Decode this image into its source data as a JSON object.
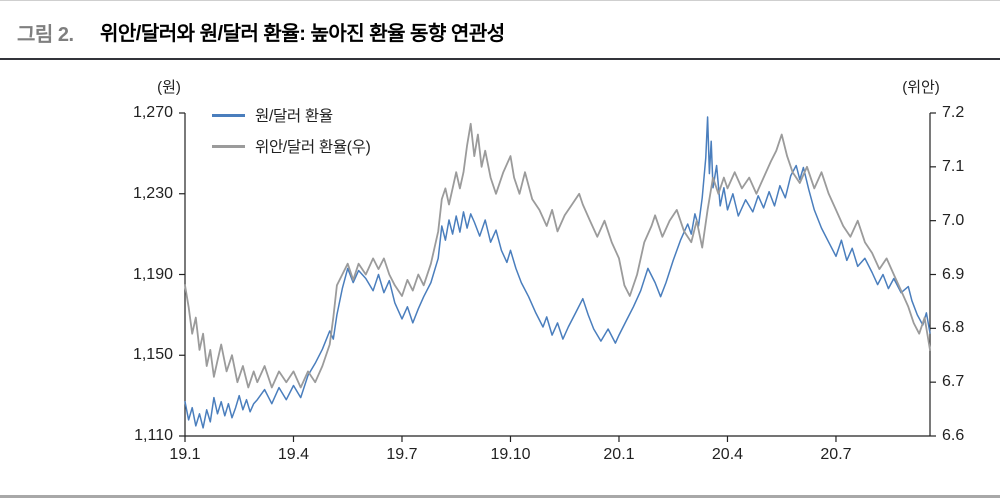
{
  "header": {
    "figure_label": "그림 2.",
    "title": "위안/달러와 원/달러 환율: 높아진 환율 동향 연관성"
  },
  "chart_data": {
    "type": "line",
    "title": "위안/달러와 원/달러 환율: 높아진 환율 동향 연관성",
    "legend_position": "top-left-inside",
    "grid": false,
    "axis_color": "#222222",
    "left_axis": {
      "unit": "(원)",
      "min": 1110,
      "max": 1270,
      "ticks": [
        {
          "value": 1110,
          "label": "1,110"
        },
        {
          "value": 1150,
          "label": "1,150"
        },
        {
          "value": 1190,
          "label": "1,190"
        },
        {
          "value": 1230,
          "label": "1,230"
        },
        {
          "value": 1270,
          "label": "1,270"
        }
      ]
    },
    "right_axis": {
      "unit": "(위안)",
      "min": 6.6,
      "max": 7.2,
      "ticks": [
        {
          "value": 6.6,
          "label": "6.6"
        },
        {
          "value": 6.7,
          "label": "6.7"
        },
        {
          "value": 6.8,
          "label": "6.8"
        },
        {
          "value": 6.9,
          "label": "6.9"
        },
        {
          "value": 7.0,
          "label": "7.0"
        },
        {
          "value": 7.1,
          "label": "7.1"
        },
        {
          "value": 7.2,
          "label": "7.2"
        }
      ]
    },
    "x_axis": {
      "unit": "year.month",
      "min": 0,
      "max": 20.6,
      "ticks": [
        {
          "t": 0,
          "label": "19.1"
        },
        {
          "t": 3,
          "label": "19.4"
        },
        {
          "t": 6,
          "label": "19.7"
        },
        {
          "t": 9,
          "label": "19.10"
        },
        {
          "t": 12,
          "label": "20.1"
        },
        {
          "t": 15,
          "label": "20.4"
        },
        {
          "t": 18,
          "label": "20.7"
        }
      ]
    },
    "series": [
      {
        "name": "원/달러 환율",
        "axis": "left",
        "color": "#4a7ebd",
        "width": 1.5,
        "points": [
          [
            0,
            1127
          ],
          [
            0.1,
            1118
          ],
          [
            0.2,
            1124
          ],
          [
            0.3,
            1115
          ],
          [
            0.4,
            1121
          ],
          [
            0.5,
            1114
          ],
          [
            0.6,
            1123
          ],
          [
            0.7,
            1117
          ],
          [
            0.8,
            1129
          ],
          [
            0.9,
            1121
          ],
          [
            1,
            1127
          ],
          [
            1.1,
            1120
          ],
          [
            1.2,
            1126
          ],
          [
            1.3,
            1119
          ],
          [
            1.4,
            1124
          ],
          [
            1.5,
            1130
          ],
          [
            1.6,
            1123
          ],
          [
            1.7,
            1128
          ],
          [
            1.8,
            1122
          ],
          [
            1.9,
            1126
          ],
          [
            2,
            1128
          ],
          [
            2.2,
            1133
          ],
          [
            2.4,
            1126
          ],
          [
            2.6,
            1134
          ],
          [
            2.8,
            1128
          ],
          [
            3,
            1135
          ],
          [
            3.2,
            1129
          ],
          [
            3.4,
            1140
          ],
          [
            3.6,
            1146
          ],
          [
            3.8,
            1153
          ],
          [
            4,
            1162
          ],
          [
            4.1,
            1158
          ],
          [
            4.2,
            1170
          ],
          [
            4.35,
            1183
          ],
          [
            4.5,
            1193
          ],
          [
            4.65,
            1186
          ],
          [
            4.8,
            1192
          ],
          [
            5,
            1188
          ],
          [
            5.2,
            1182
          ],
          [
            5.35,
            1190
          ],
          [
            5.5,
            1181
          ],
          [
            5.65,
            1187
          ],
          [
            5.8,
            1176
          ],
          [
            6,
            1168
          ],
          [
            6.15,
            1174
          ],
          [
            6.3,
            1166
          ],
          [
            6.45,
            1173
          ],
          [
            6.6,
            1179
          ],
          [
            6.8,
            1186
          ],
          [
            7,
            1198
          ],
          [
            7.1,
            1214
          ],
          [
            7.2,
            1207
          ],
          [
            7.3,
            1217
          ],
          [
            7.4,
            1210
          ],
          [
            7.5,
            1219
          ],
          [
            7.6,
            1211
          ],
          [
            7.7,
            1221
          ],
          [
            7.8,
            1213
          ],
          [
            7.9,
            1220
          ],
          [
            8,
            1216
          ],
          [
            8.15,
            1209
          ],
          [
            8.3,
            1217
          ],
          [
            8.45,
            1206
          ],
          [
            8.6,
            1212
          ],
          [
            8.75,
            1202
          ],
          [
            8.9,
            1196
          ],
          [
            9,
            1202
          ],
          [
            9.15,
            1193
          ],
          [
            9.3,
            1186
          ],
          [
            9.5,
            1179
          ],
          [
            9.7,
            1171
          ],
          [
            9.9,
            1164
          ],
          [
            10,
            1169
          ],
          [
            10.15,
            1160
          ],
          [
            10.3,
            1166
          ],
          [
            10.45,
            1158
          ],
          [
            10.6,
            1164
          ],
          [
            10.8,
            1171
          ],
          [
            11,
            1178
          ],
          [
            11.15,
            1170
          ],
          [
            11.3,
            1163
          ],
          [
            11.5,
            1157
          ],
          [
            11.7,
            1163
          ],
          [
            11.9,
            1156
          ],
          [
            12,
            1160
          ],
          [
            12.2,
            1167
          ],
          [
            12.4,
            1174
          ],
          [
            12.6,
            1182
          ],
          [
            12.8,
            1193
          ],
          [
            13,
            1186
          ],
          [
            13.15,
            1179
          ],
          [
            13.3,
            1186
          ],
          [
            13.5,
            1197
          ],
          [
            13.7,
            1207
          ],
          [
            13.9,
            1215
          ],
          [
            14,
            1210
          ],
          [
            14.1,
            1220
          ],
          [
            14.2,
            1214
          ],
          [
            14.3,
            1228
          ],
          [
            14.4,
            1248
          ],
          [
            14.45,
            1268
          ],
          [
            14.5,
            1240
          ],
          [
            14.55,
            1256
          ],
          [
            14.6,
            1233
          ],
          [
            14.7,
            1244
          ],
          [
            14.8,
            1224
          ],
          [
            14.9,
            1233
          ],
          [
            15,
            1222
          ],
          [
            15.15,
            1230
          ],
          [
            15.3,
            1219
          ],
          [
            15.5,
            1227
          ],
          [
            15.7,
            1221
          ],
          [
            15.85,
            1229
          ],
          [
            16,
            1223
          ],
          [
            16.15,
            1231
          ],
          [
            16.3,
            1224
          ],
          [
            16.45,
            1234
          ],
          [
            16.6,
            1228
          ],
          [
            16.75,
            1239
          ],
          [
            16.9,
            1244
          ],
          [
            17,
            1237
          ],
          [
            17.1,
            1243
          ],
          [
            17.25,
            1232
          ],
          [
            17.4,
            1222
          ],
          [
            17.6,
            1213
          ],
          [
            17.8,
            1206
          ],
          [
            18,
            1199
          ],
          [
            18.15,
            1207
          ],
          [
            18.3,
            1197
          ],
          [
            18.45,
            1203
          ],
          [
            18.6,
            1194
          ],
          [
            18.8,
            1198
          ],
          [
            19,
            1191
          ],
          [
            19.15,
            1185
          ],
          [
            19.3,
            1190
          ],
          [
            19.45,
            1183
          ],
          [
            19.6,
            1188
          ],
          [
            19.8,
            1181
          ],
          [
            20,
            1184
          ],
          [
            20.1,
            1177
          ],
          [
            20.25,
            1170
          ],
          [
            20.4,
            1165
          ],
          [
            20.5,
            1171
          ],
          [
            20.6,
            1161
          ]
        ]
      },
      {
        "name": "위안/달러 환율(우)",
        "axis": "right",
        "color": "#9b9b9b",
        "width": 1.8,
        "points": [
          [
            0,
            6.88
          ],
          [
            0.1,
            6.84
          ],
          [
            0.2,
            6.79
          ],
          [
            0.3,
            6.82
          ],
          [
            0.4,
            6.76
          ],
          [
            0.5,
            6.79
          ],
          [
            0.6,
            6.73
          ],
          [
            0.7,
            6.76
          ],
          [
            0.8,
            6.71
          ],
          [
            0.9,
            6.74
          ],
          [
            1,
            6.77
          ],
          [
            1.15,
            6.72
          ],
          [
            1.3,
            6.75
          ],
          [
            1.45,
            6.7
          ],
          [
            1.6,
            6.73
          ],
          [
            1.75,
            6.69
          ],
          [
            1.9,
            6.72
          ],
          [
            2,
            6.7
          ],
          [
            2.2,
            6.73
          ],
          [
            2.4,
            6.69
          ],
          [
            2.6,
            6.72
          ],
          [
            2.8,
            6.7
          ],
          [
            3,
            6.72
          ],
          [
            3.2,
            6.69
          ],
          [
            3.4,
            6.72
          ],
          [
            3.6,
            6.7
          ],
          [
            3.8,
            6.73
          ],
          [
            4,
            6.77
          ],
          [
            4.1,
            6.82
          ],
          [
            4.2,
            6.88
          ],
          [
            4.35,
            6.9
          ],
          [
            4.5,
            6.92
          ],
          [
            4.65,
            6.89
          ],
          [
            4.8,
            6.92
          ],
          [
            5,
            6.9
          ],
          [
            5.2,
            6.93
          ],
          [
            5.35,
            6.91
          ],
          [
            5.5,
            6.93
          ],
          [
            5.65,
            6.9
          ],
          [
            5.8,
            6.88
          ],
          [
            6,
            6.86
          ],
          [
            6.15,
            6.89
          ],
          [
            6.3,
            6.87
          ],
          [
            6.45,
            6.9
          ],
          [
            6.6,
            6.88
          ],
          [
            6.8,
            6.92
          ],
          [
            7,
            6.98
          ],
          [
            7.1,
            7.04
          ],
          [
            7.2,
            7.06
          ],
          [
            7.3,
            7.03
          ],
          [
            7.4,
            7.06
          ],
          [
            7.5,
            7.09
          ],
          [
            7.6,
            7.06
          ],
          [
            7.7,
            7.09
          ],
          [
            7.8,
            7.14
          ],
          [
            7.9,
            7.18
          ],
          [
            8,
            7.12
          ],
          [
            8.1,
            7.16
          ],
          [
            8.2,
            7.1
          ],
          [
            8.3,
            7.13
          ],
          [
            8.45,
            7.08
          ],
          [
            8.6,
            7.05
          ],
          [
            8.8,
            7.09
          ],
          [
            9,
            7.12
          ],
          [
            9.1,
            7.08
          ],
          [
            9.25,
            7.05
          ],
          [
            9.4,
            7.09
          ],
          [
            9.6,
            7.04
          ],
          [
            9.8,
            7.02
          ],
          [
            10,
            6.99
          ],
          [
            10.15,
            7.02
          ],
          [
            10.3,
            6.98
          ],
          [
            10.5,
            7.01
          ],
          [
            10.7,
            7.03
          ],
          [
            10.9,
            7.05
          ],
          [
            11,
            7.03
          ],
          [
            11.2,
            7.0
          ],
          [
            11.4,
            6.97
          ],
          [
            11.6,
            7.0
          ],
          [
            11.8,
            6.96
          ],
          [
            12,
            6.93
          ],
          [
            12.15,
            6.88
          ],
          [
            12.3,
            6.86
          ],
          [
            12.5,
            6.9
          ],
          [
            12.7,
            6.96
          ],
          [
            12.9,
            6.99
          ],
          [
            13,
            7.01
          ],
          [
            13.2,
            6.97
          ],
          [
            13.4,
            7.0
          ],
          [
            13.6,
            7.02
          ],
          [
            13.8,
            6.98
          ],
          [
            14,
            6.96
          ],
          [
            14.15,
            7.0
          ],
          [
            14.3,
            6.95
          ],
          [
            14.45,
            7.02
          ],
          [
            14.6,
            7.08
          ],
          [
            14.75,
            7.05
          ],
          [
            14.9,
            7.08
          ],
          [
            15,
            7.06
          ],
          [
            15.2,
            7.09
          ],
          [
            15.4,
            7.06
          ],
          [
            15.6,
            7.08
          ],
          [
            15.8,
            7.05
          ],
          [
            16,
            7.08
          ],
          [
            16.2,
            7.11
          ],
          [
            16.35,
            7.13
          ],
          [
            16.5,
            7.16
          ],
          [
            16.65,
            7.12
          ],
          [
            16.8,
            7.09
          ],
          [
            17,
            7.07
          ],
          [
            17.2,
            7.1
          ],
          [
            17.4,
            7.06
          ],
          [
            17.6,
            7.09
          ],
          [
            17.8,
            7.05
          ],
          [
            18,
            7.02
          ],
          [
            18.2,
            6.99
          ],
          [
            18.4,
            6.97
          ],
          [
            18.6,
            7.0
          ],
          [
            18.8,
            6.96
          ],
          [
            19,
            6.94
          ],
          [
            19.2,
            6.91
          ],
          [
            19.4,
            6.93
          ],
          [
            19.6,
            6.9
          ],
          [
            19.8,
            6.87
          ],
          [
            20,
            6.84
          ],
          [
            20.15,
            6.81
          ],
          [
            20.3,
            6.79
          ],
          [
            20.45,
            6.82
          ],
          [
            20.6,
            6.76
          ]
        ]
      }
    ]
  }
}
